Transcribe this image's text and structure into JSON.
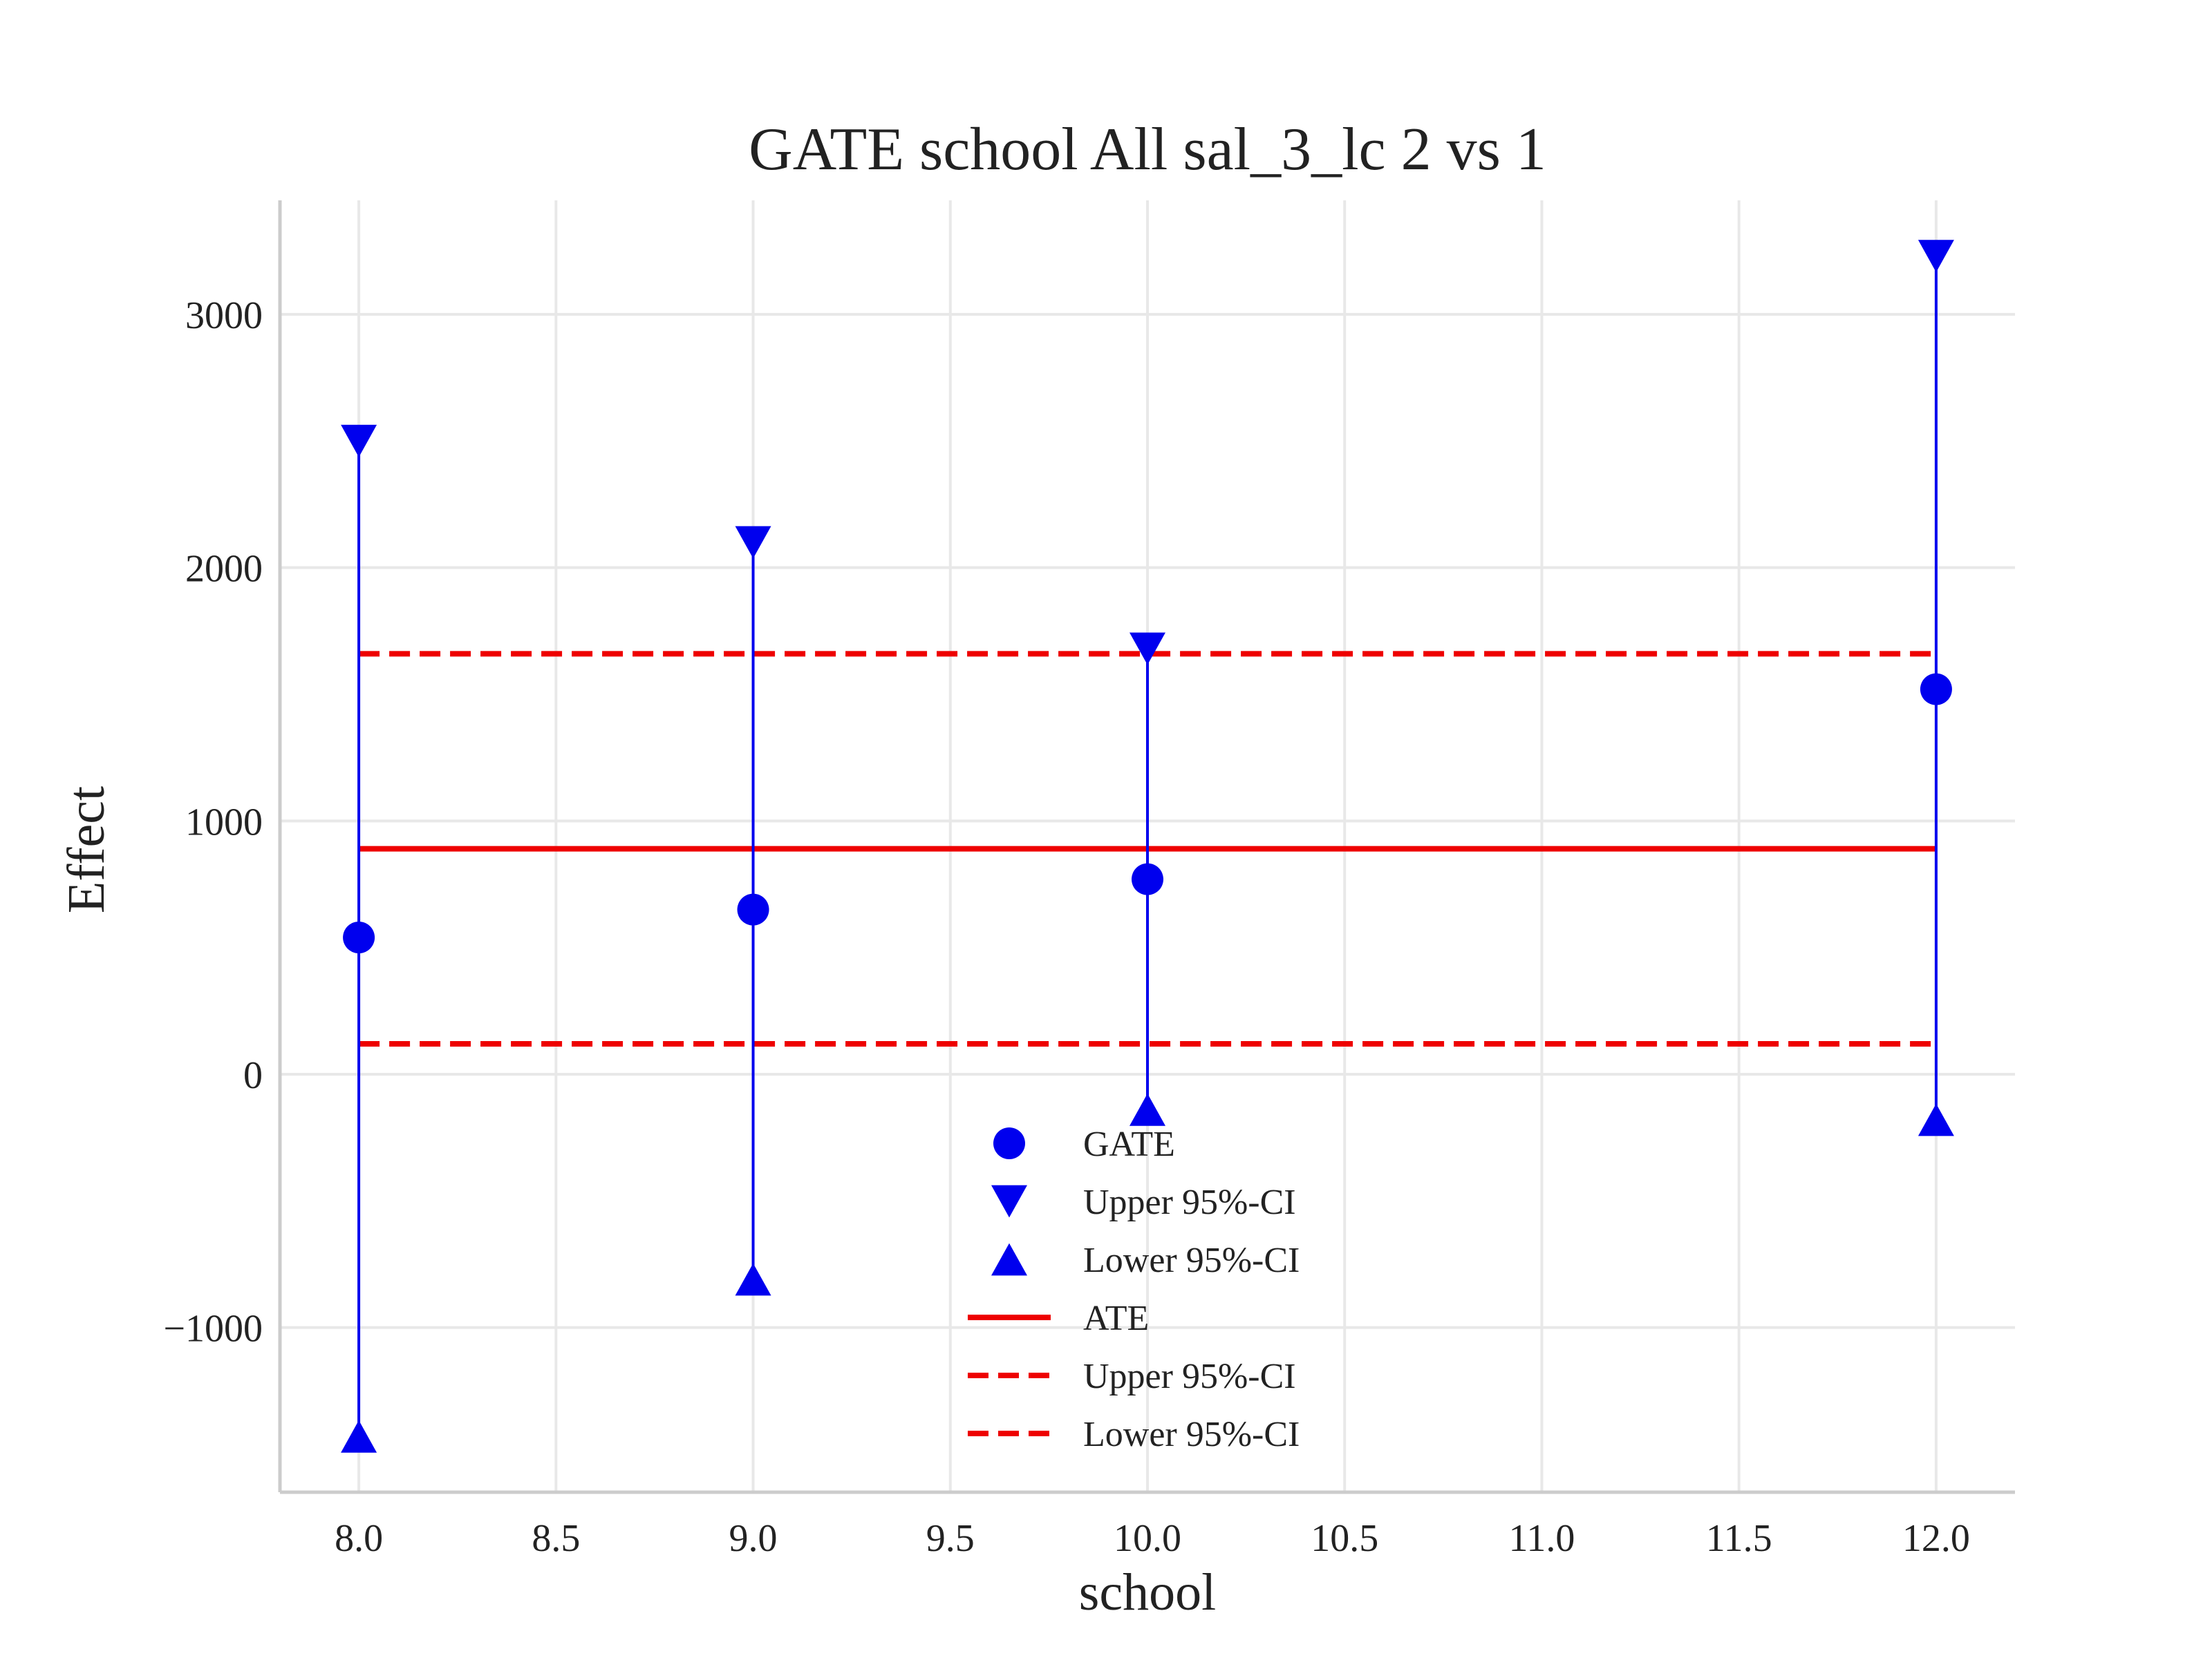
{
  "chart_data": {
    "type": "scatter",
    "title": "GATE school All sal_3_lc  2 vs 1",
    "xlabel": "school",
    "ylabel": "Effect",
    "xlim": [
      7.8,
      12.2
    ],
    "ylim": [
      -1650,
      3450
    ],
    "xticks": [
      8.0,
      8.5,
      9.0,
      9.5,
      10.0,
      10.5,
      11.0,
      11.5,
      12.0
    ],
    "xtick_labels": [
      "8.0",
      "8.5",
      "9.0",
      "9.5",
      "10.0",
      "10.5",
      "11.0",
      "11.5",
      "12.0"
    ],
    "yticks": [
      -1000,
      0,
      1000,
      2000,
      3000
    ],
    "ytick_labels": [
      "−1000",
      "0",
      "1000",
      "2000",
      "3000"
    ],
    "grid": true,
    "legend_position": "bottom-center",
    "colors": {
      "gate": "#0000ee",
      "ate": "#ee0000",
      "grid": "#e8e8e8",
      "axis": "#cccccc"
    },
    "points": [
      {
        "x": 8.0,
        "gate": 540,
        "upper": 2500,
        "lower": -1430
      },
      {
        "x": 9.0,
        "gate": 650,
        "upper": 2100,
        "lower": -810
      },
      {
        "x": 10.0,
        "gate": 770,
        "upper": 1680,
        "lower": -140
      },
      {
        "x": 12.0,
        "gate": 1520,
        "upper": 3230,
        "lower": -180
      }
    ],
    "ate": {
      "value": 890,
      "upper": 1660,
      "lower": 120,
      "x_range": [
        8.0,
        12.0
      ]
    },
    "legend": [
      {
        "label": "GATE",
        "marker": "circle"
      },
      {
        "label": "Upper 95%-CI",
        "marker": "triangle-down"
      },
      {
        "label": "Lower 95%-CI",
        "marker": "triangle-up"
      },
      {
        "label": "ATE",
        "marker": "solid-line"
      },
      {
        "label": "Upper 95%-CI",
        "marker": "dashed-line"
      },
      {
        "label": "Lower 95%-CI",
        "marker": "dashed-line"
      }
    ]
  }
}
